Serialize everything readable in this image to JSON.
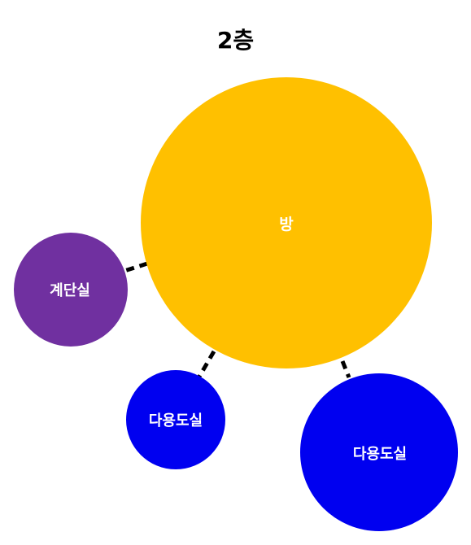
{
  "title": "2층",
  "colors": {
    "room": "#FFC000",
    "stairs": "#7030A0",
    "multipurpose": "#0000F0",
    "connector": "#000000",
    "label": "#FFFFFF"
  },
  "nodes": [
    {
      "id": "room",
      "label": "방"
    },
    {
      "id": "stairs",
      "label": "계단실"
    },
    {
      "id": "multipurpose-small",
      "label": "다용도실"
    },
    {
      "id": "multipurpose-large",
      "label": "다용도실"
    }
  ],
  "connections": [
    {
      "from": "room",
      "to": "stairs"
    },
    {
      "from": "room",
      "to": "multipurpose-small"
    },
    {
      "from": "room",
      "to": "multipurpose-large"
    }
  ]
}
